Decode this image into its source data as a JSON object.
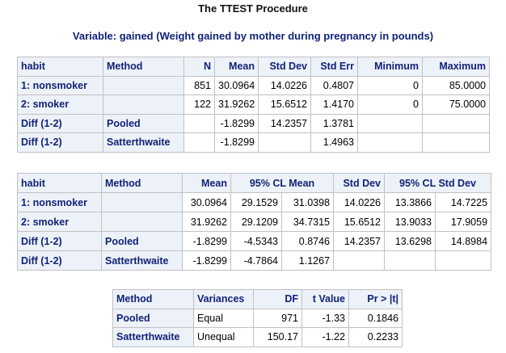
{
  "title": "The TTEST Procedure",
  "subtitle": "Variable: gained (Weight gained by mother during pregnancy in pounds)",
  "stats_table": {
    "headers": [
      "habit",
      "Method",
      "N",
      "Mean",
      "Std Dev",
      "Std Err",
      "Minimum",
      "Maximum"
    ],
    "rows": [
      [
        "1: nonsmoker",
        "",
        "851",
        "30.0964",
        "14.0226",
        "0.4807",
        "0",
        "85.0000"
      ],
      [
        "2: smoker",
        "",
        "122",
        "31.9262",
        "15.6512",
        "1.4170",
        "0",
        "75.0000"
      ],
      [
        "Diff (1-2)",
        "Pooled",
        "",
        "-1.8299",
        "14.2357",
        "1.3781",
        "",
        ""
      ],
      [
        "Diff (1-2)",
        "Satterthwaite",
        "",
        "-1.8299",
        "",
        "1.4963",
        "",
        ""
      ]
    ]
  },
  "cl_table": {
    "headers": {
      "habit": "habit",
      "method": "Method",
      "mean": "Mean",
      "cl_mean": "95% CL Mean",
      "std_dev": "Std Dev",
      "cl_std": "95% CL Std Dev"
    },
    "rows": [
      [
        "1: nonsmoker",
        "",
        "30.0964",
        "29.1529",
        "31.0398",
        "14.0226",
        "13.3866",
        "14.7225"
      ],
      [
        "2: smoker",
        "",
        "31.9262",
        "29.1209",
        "34.7315",
        "15.6512",
        "13.9033",
        "17.9059"
      ],
      [
        "Diff (1-2)",
        "Pooled",
        "-1.8299",
        "-4.5343",
        "0.8746",
        "14.2357",
        "13.6298",
        "14.8984"
      ],
      [
        "Diff (1-2)",
        "Satterthwaite",
        "-1.8299",
        "-4.7864",
        "1.1267",
        "",
        "",
        ""
      ]
    ]
  },
  "ttest_table": {
    "headers": [
      "Method",
      "Variances",
      "DF",
      "t Value",
      "Pr > |t|"
    ],
    "rows": [
      [
        "Pooled",
        "Equal",
        "971",
        "-1.33",
        "0.1846"
      ],
      [
        "Satterthwaite",
        "Unequal",
        "150.17",
        "-1.22",
        "0.2233"
      ]
    ]
  },
  "colors": {
    "header_background": "#edf2f9",
    "header_text": "#112277",
    "border": "#c1c1c1"
  }
}
